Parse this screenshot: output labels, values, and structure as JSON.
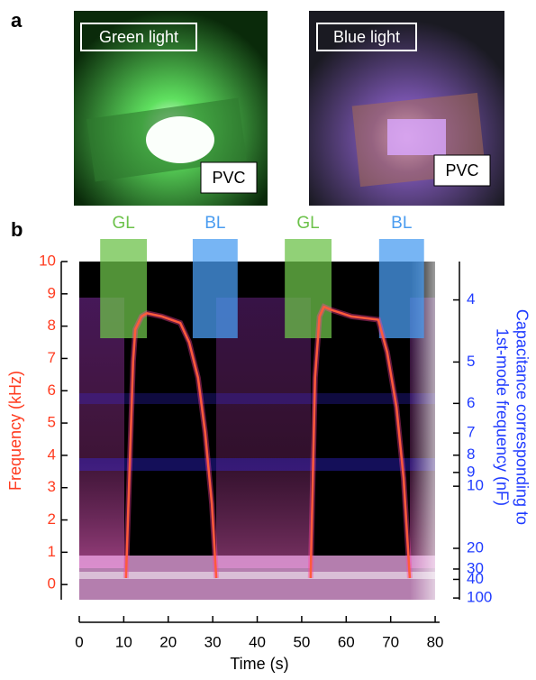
{
  "panel_labels": [
    "a",
    "b"
  ],
  "photos": [
    {
      "label": "Green light",
      "sample": "PVC"
    },
    {
      "label": "Blue light",
      "sample": "PVC"
    }
  ],
  "chart_data": {
    "type": "line",
    "x_label": "Time (s)",
    "y_label": "Frequency (kHz)",
    "y2_label": [
      "Capacitance corresponding to",
      "1st-mode frequency (nF)"
    ],
    "x": [
      10.5,
      12.1,
      12.6,
      14,
      15.2,
      18.6,
      22.7,
      24.7,
      26.7,
      28.3,
      29.8,
      30.8,
      41,
      52,
      53,
      54,
      55,
      56.7,
      61.2,
      67.2,
      69.2,
      71.3,
      72.9,
      74.3
    ],
    "values": [
      0.2,
      6.9,
      7.9,
      8.3,
      8.4,
      8.3,
      8.1,
      7.5,
      6.4,
      4.7,
      2.5,
      0.2,
      null,
      0.2,
      6.4,
      8.3,
      8.6,
      8.5,
      8.3,
      8.2,
      7.2,
      5.5,
      3.3,
      0.2
    ],
    "color": "#ff5a3c",
    "xlim": [
      0,
      81
    ],
    "xticks": [
      0,
      10,
      20,
      30,
      40,
      50,
      60,
      70,
      80
    ],
    "ylim": [
      -0.47,
      10
    ],
    "yticks": [
      0,
      1,
      2,
      3,
      4,
      5,
      6,
      7,
      8,
      9,
      10
    ],
    "y_color": "#ff3b1f",
    "y2scale": "reciprocal",
    "y2lim": [
      3.56,
      116
    ],
    "y2ticks": [
      4,
      5,
      6,
      7,
      8,
      9,
      10,
      20,
      30,
      40,
      100
    ],
    "y2_color": "#1f3bff",
    "annotations": [
      {
        "label": "GL",
        "x": [
          4.7,
          15.2
        ],
        "color": "#6cc24a"
      },
      {
        "label": "BL",
        "x": [
          25.5,
          35.6
        ],
        "color": "#4a9cf0"
      },
      {
        "label": "GL",
        "x": [
          46.2,
          56.7
        ],
        "color": "#6cc24a"
      },
      {
        "label": "BL",
        "x": [
          67.4,
          77.5
        ],
        "color": "#4a9cf0"
      }
    ]
  }
}
